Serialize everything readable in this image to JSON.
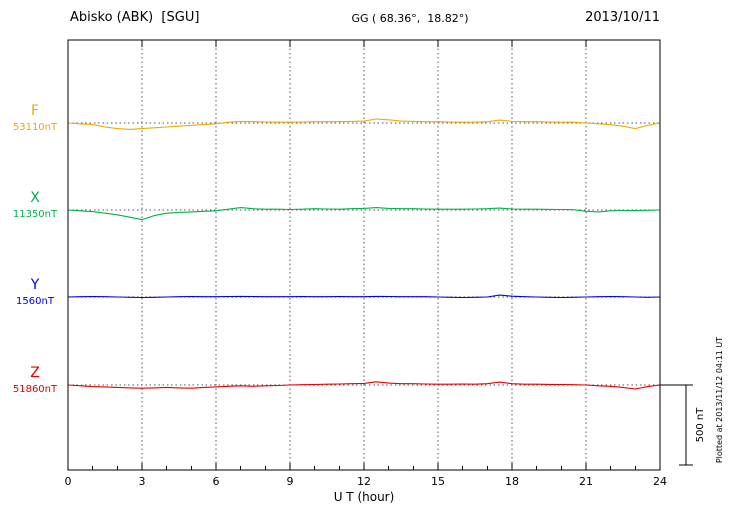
{
  "header": {
    "station": "Abisko (ABK)  [SGU]",
    "coords": "GG ( 68.36°,  18.82°)",
    "date": "2013/10/11"
  },
  "footer": {
    "xlabel": "U T (hour)"
  },
  "right": {
    "scale_label": "500 nT",
    "plotted_at": "Plotted at 2013/11/12 04:11 UT"
  },
  "chart_data": {
    "type": "line",
    "title": "Abisko (ABK) [SGU] magnetogram 2013/10/11",
    "xlabel": "U T (hour)",
    "x_range_hours": [
      0,
      24
    ],
    "x_step_hours": 0.5,
    "x_ticks": [
      0,
      3,
      6,
      9,
      12,
      15,
      18,
      21,
      24
    ],
    "grid": "dotted vertical at 3-hour ticks, dotted baseline per trace",
    "scale_bar_nT": 500,
    "series": [
      {
        "name": "F",
        "baseline_label": "53110nT",
        "baseline_nT": 53110,
        "color": "#f2a900",
        "offsets_nT": [
          0,
          -5,
          -10,
          -25,
          -35,
          -40,
          -35,
          -30,
          -25,
          -20,
          -15,
          -10,
          -5,
          5,
          10,
          8,
          6,
          5,
          5,
          6,
          8,
          8,
          8,
          10,
          12,
          25,
          20,
          12,
          10,
          8,
          8,
          6,
          5,
          5,
          8,
          18,
          10,
          8,
          8,
          6,
          5,
          5,
          0,
          -5,
          -10,
          -20,
          -35,
          -15,
          0
        ]
      },
      {
        "name": "X",
        "baseline_label": "11350nT",
        "baseline_nT": 11350,
        "color": "#00b34a",
        "offsets_nT": [
          0,
          -5,
          -10,
          -20,
          -30,
          -45,
          -60,
          -35,
          -20,
          -15,
          -12,
          -8,
          -5,
          5,
          15,
          8,
          5,
          5,
          3,
          5,
          8,
          6,
          5,
          8,
          10,
          15,
          10,
          8,
          8,
          6,
          5,
          5,
          5,
          6,
          8,
          12,
          6,
          5,
          5,
          4,
          3,
          2,
          -8,
          -12,
          -5,
          -3,
          -3,
          -2,
          0
        ]
      },
      {
        "name": "Y",
        "baseline_label": "1560nT",
        "baseline_nT": 1560,
        "color": "#0000ee",
        "offsets_nT": [
          0,
          2,
          3,
          2,
          0,
          -2,
          -3,
          -2,
          0,
          2,
          3,
          2,
          2,
          3,
          4,
          3,
          2,
          2,
          2,
          3,
          2,
          2,
          3,
          2,
          2,
          4,
          3,
          2,
          2,
          2,
          0,
          -2,
          -3,
          -2,
          0,
          12,
          5,
          2,
          0,
          -2,
          -3,
          -2,
          0,
          2,
          3,
          2,
          0,
          -2,
          0
        ]
      },
      {
        "name": "Z",
        "baseline_label": "51860nT",
        "baseline_nT": 51860,
        "color": "#e60000",
        "offsets_nT": [
          0,
          -5,
          -10,
          -12,
          -15,
          -18,
          -20,
          -18,
          -15,
          -18,
          -20,
          -15,
          -12,
          -8,
          -5,
          -8,
          -5,
          -3,
          0,
          2,
          3,
          5,
          6,
          8,
          10,
          20,
          12,
          8,
          8,
          6,
          5,
          5,
          6,
          5,
          8,
          18,
          8,
          5,
          5,
          4,
          3,
          2,
          0,
          -5,
          -8,
          -15,
          -25,
          -10,
          0
        ]
      }
    ]
  }
}
